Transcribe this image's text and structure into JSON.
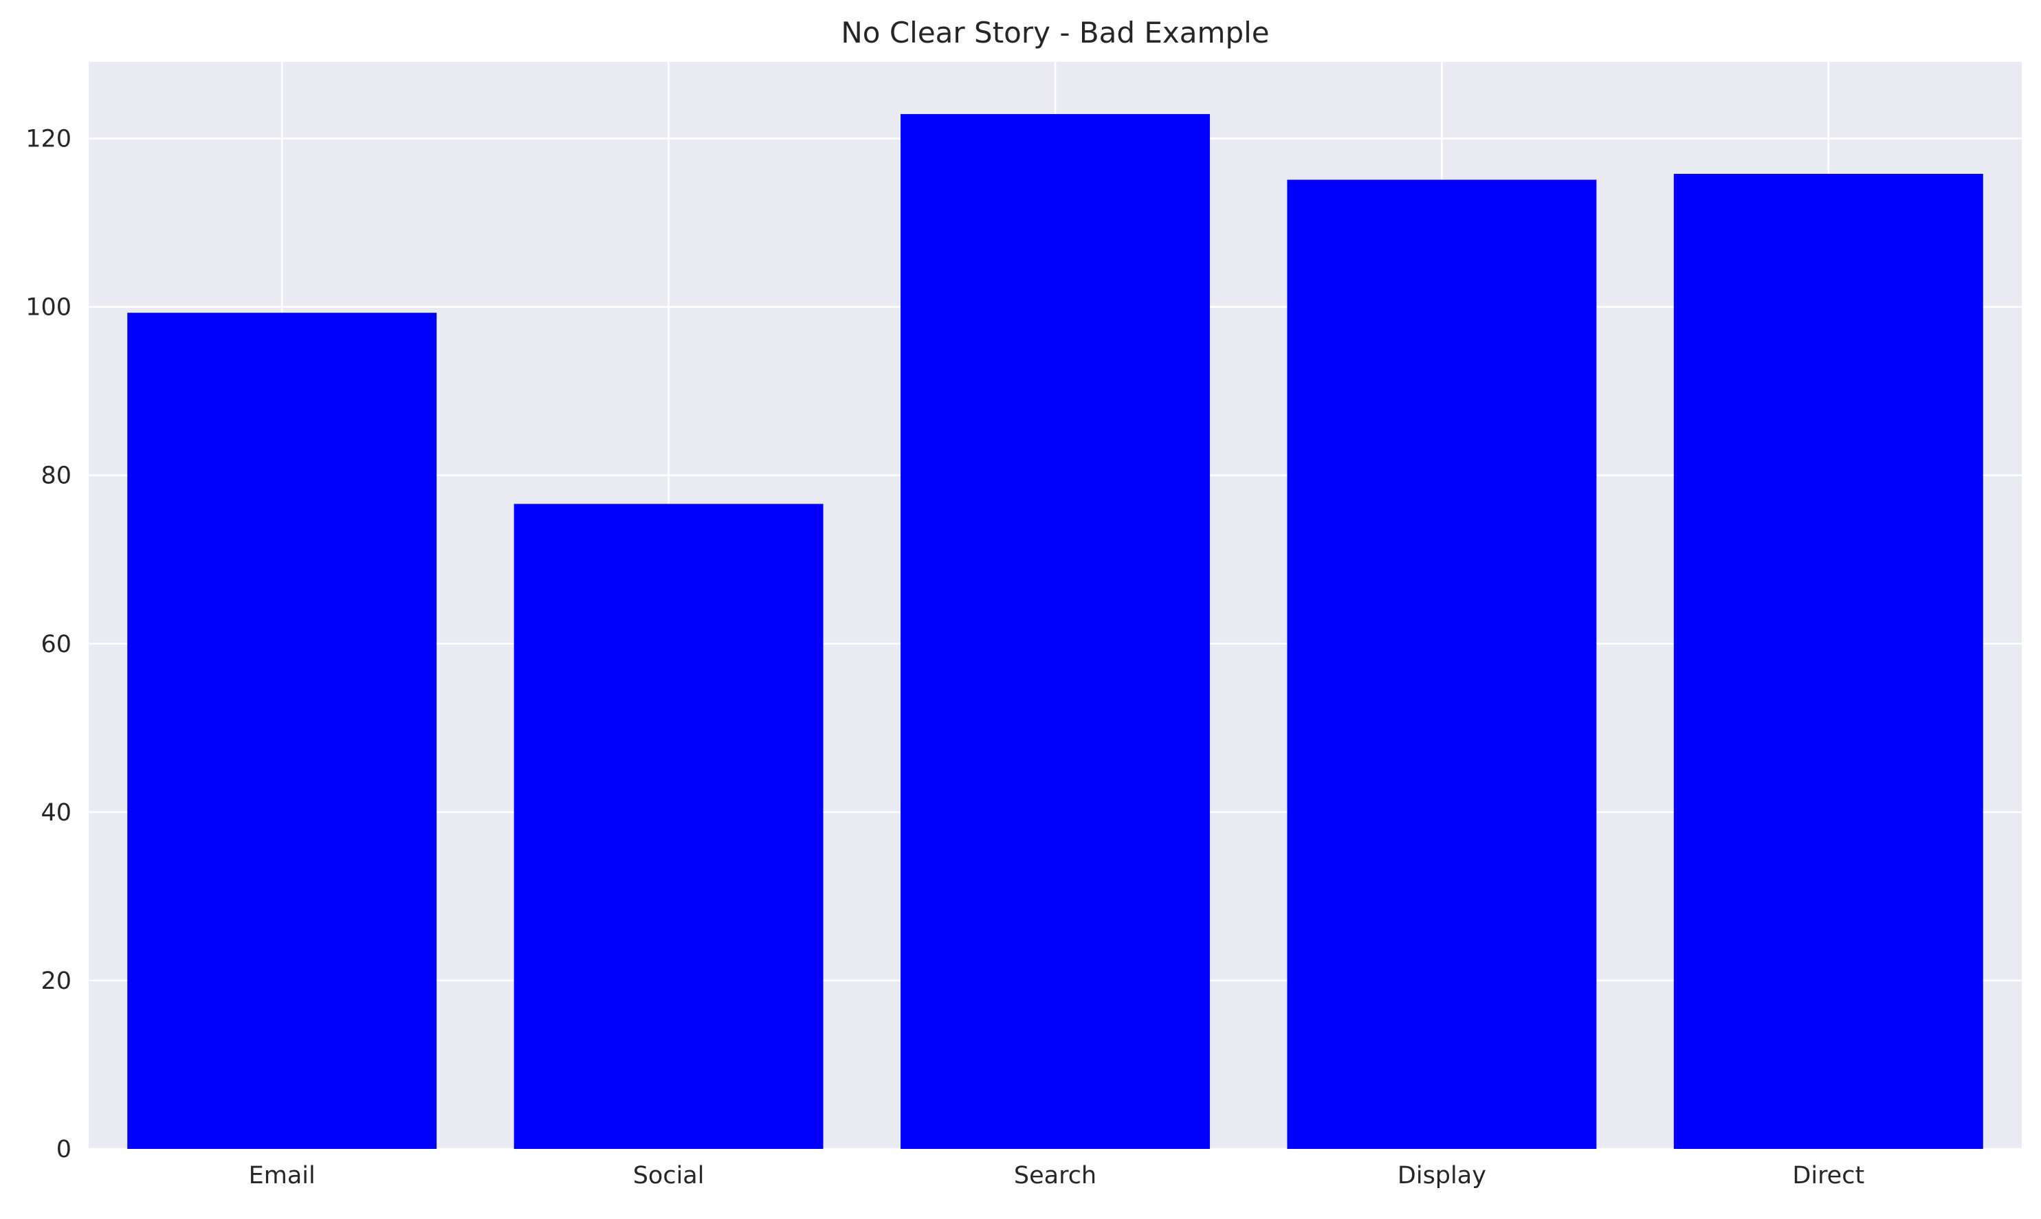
{
  "chart_data": {
    "type": "bar",
    "title": "No Clear Story - Bad Example",
    "xlabel": "",
    "ylabel": "",
    "categories": [
      "Email",
      "Social",
      "Search",
      "Display",
      "Direct"
    ],
    "values": [
      99.3,
      76.6,
      122.9,
      115.1,
      115.8
    ],
    "ylim": [
      0,
      129.1
    ],
    "yticks": [
      0,
      20,
      40,
      60,
      80,
      100,
      120
    ],
    "grid": true,
    "legend": "none",
    "colors": {
      "bar": "#0000ff",
      "plot_background": "#eaeaf2",
      "grid": "#ffffff",
      "text": "#262626"
    }
  }
}
